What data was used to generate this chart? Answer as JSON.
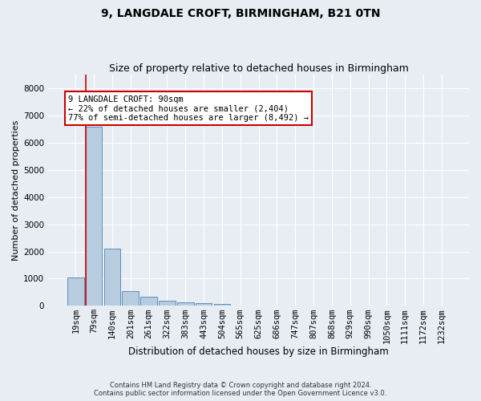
{
  "title1": "9, LANGDALE CROFT, BIRMINGHAM, B21 0TN",
  "title2": "Size of property relative to detached houses in Birmingham",
  "xlabel": "Distribution of detached houses by size in Birmingham",
  "ylabel": "Number of detached properties",
  "footer1": "Contains HM Land Registry data © Crown copyright and database right 2024.",
  "footer2": "Contains public sector information licensed under the Open Government Licence v3.0.",
  "bar_labels": [
    "19sqm",
    "79sqm",
    "140sqm",
    "201sqm",
    "261sqm",
    "322sqm",
    "383sqm",
    "443sqm",
    "504sqm",
    "565sqm",
    "625sqm",
    "686sqm",
    "747sqm",
    "807sqm",
    "868sqm",
    "929sqm",
    "990sqm",
    "1050sqm",
    "1111sqm",
    "1172sqm",
    "1232sqm"
  ],
  "bar_values": [
    1050,
    6600,
    2100,
    550,
    320,
    190,
    140,
    100,
    55,
    0,
    0,
    0,
    0,
    0,
    0,
    0,
    0,
    0,
    0,
    0,
    0
  ],
  "bar_color": "#b8ccdf",
  "bar_edge_color": "#5a8fbf",
  "highlight_bar_index": 1,
  "highlight_line_color": "#cc0000",
  "annotation_text": "9 LANGDALE CROFT: 90sqm\n← 22% of detached houses are smaller (2,404)\n77% of semi-detached houses are larger (8,492) →",
  "annotation_box_color": "#ffffff",
  "annotation_border_color": "#cc0000",
  "ylim": [
    0,
    8500
  ],
  "yticks": [
    0,
    1000,
    2000,
    3000,
    4000,
    5000,
    6000,
    7000,
    8000
  ],
  "background_color": "#e8edf4",
  "plot_background": "#e8edf4",
  "grid_color": "#ffffff",
  "title1_fontsize": 10,
  "title2_fontsize": 9,
  "xlabel_fontsize": 8.5,
  "ylabel_fontsize": 8,
  "tick_fontsize": 7.5,
  "annotation_fontsize": 7.5,
  "footer_fontsize": 6
}
